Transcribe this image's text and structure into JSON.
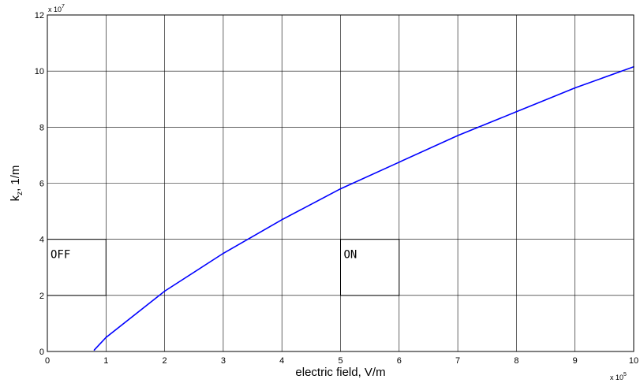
{
  "chart_data": {
    "type": "line",
    "xlabel": "electric field, V/m",
    "ylabel_main": "k",
    "ylabel_sub": "z",
    "ylabel_rest": ", 1/m",
    "x_multiplier": "x 10",
    "x_multiplier_exp": "5",
    "y_multiplier": "x 10",
    "y_multiplier_exp": "7",
    "xlim": [
      0,
      10
    ],
    "ylim": [
      0,
      12
    ],
    "x_ticks": [
      0,
      1,
      2,
      3,
      4,
      5,
      6,
      7,
      8,
      9,
      10
    ],
    "y_ticks": [
      0,
      2,
      4,
      6,
      8,
      10,
      12
    ],
    "grid": true,
    "line_color": "#0000ff",
    "series": [
      {
        "x": [
          0.8,
          1,
          2,
          3,
          4,
          5,
          6,
          7,
          8,
          9,
          10
        ],
        "y": [
          0.05,
          0.5,
          2.15,
          3.5,
          4.7,
          5.8,
          6.75,
          7.7,
          8.55,
          9.4,
          10.15
        ]
      }
    ],
    "annotations": [
      {
        "label": "OFF",
        "x0": 0,
        "x1": 1,
        "y0": 2,
        "y1": 4
      },
      {
        "label": "ON",
        "x0": 5,
        "x1": 6,
        "y0": 2,
        "y1": 4
      }
    ]
  }
}
